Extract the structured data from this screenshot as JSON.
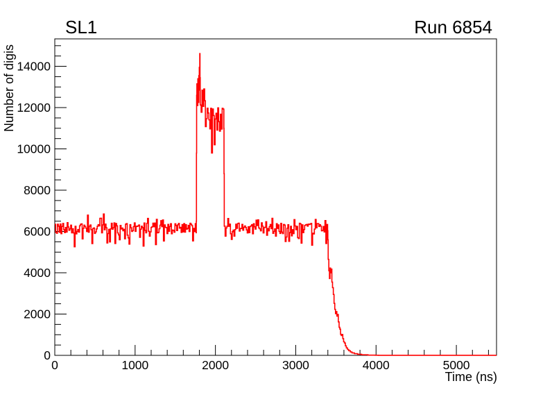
{
  "chart_data": {
    "type": "line",
    "subtype": "histogram-step-line",
    "title": "SL1",
    "right_title": "Run 6854",
    "xlabel": "Time (ns)",
    "ylabel": "Number of digis",
    "xlim": [
      0,
      5500
    ],
    "ylim": [
      0,
      15330
    ],
    "x_major_ticks": [
      0,
      1000,
      2000,
      3000,
      4000,
      5000
    ],
    "x_minor_step": 200,
    "y_major_ticks": [
      0,
      2000,
      4000,
      6000,
      8000,
      10000,
      12000,
      14000
    ],
    "y_minor_step": 500,
    "grid": false,
    "legend": "none",
    "line_color": "#ff0000",
    "axis_color": "#000000",
    "background_color": "#ffffff",
    "peak_value": 14617,
    "peak_time_ns": 1805,
    "baseline_level": 6150,
    "burst_window_ns": [
      1762,
      2110
    ],
    "signal_end_ns": 4000,
    "noise_seed": 6854,
    "series_segments": [
      {
        "kind": "noise",
        "t0": 0,
        "t1": 1762,
        "bin": 11,
        "mean": 6150,
        "amp": 270,
        "dip_p": 0.16,
        "dip_min": 250,
        "dip_max": 750,
        "up_p": 0.12,
        "up_min": 150,
        "up_max": 430
      },
      {
        "kind": "points",
        "points": [
          [
            1762,
            6500
          ],
          [
            1764,
            9800
          ],
          [
            1766,
            12600
          ],
          [
            1769,
            13150
          ],
          [
            1772,
            12300
          ],
          [
            1775,
            12950
          ],
          [
            1778,
            12100
          ],
          [
            1781,
            13400
          ],
          [
            1784,
            12650
          ],
          [
            1787,
            13100
          ],
          [
            1790,
            12250
          ],
          [
            1793,
            13550
          ],
          [
            1796,
            12850
          ],
          [
            1799,
            13950
          ],
          [
            1802,
            13300
          ],
          [
            1805,
            14617
          ],
          [
            1808,
            13450
          ],
          [
            1811,
            12750
          ]
        ]
      },
      {
        "kind": "noise",
        "t0": 1811,
        "t1": 1875,
        "bin": 11,
        "mean": 12300,
        "amp": 550,
        "dip_p": 0.15,
        "dip_min": 300,
        "dip_max": 900,
        "up_p": 0.1,
        "up_min": 100,
        "up_max": 500
      },
      {
        "kind": "noise",
        "t0": 1875,
        "t1": 2105,
        "bin": 11,
        "mean": 11400,
        "amp": 620,
        "dip_p": 0.12,
        "dip_min": 300,
        "dip_max": 1250,
        "up_p": 0.13,
        "up_min": 200,
        "up_max": 900
      },
      {
        "kind": "points",
        "points": [
          [
            2105,
            11000
          ],
          [
            2107,
            8800
          ],
          [
            2110,
            6400
          ]
        ]
      },
      {
        "kind": "noise",
        "t0": 2110,
        "t1": 3400,
        "bin": 11,
        "mean": 6150,
        "amp": 270,
        "dip_p": 0.16,
        "dip_min": 250,
        "dip_max": 750,
        "up_p": 0.12,
        "up_min": 150,
        "up_max": 430
      },
      {
        "kind": "points",
        "points": [
          [
            3400,
            5600
          ],
          [
            3404,
            4650
          ],
          [
            3412,
            4100
          ],
          [
            3420,
            3720
          ],
          [
            3427,
            4230
          ],
          [
            3434,
            4000
          ],
          [
            3443,
            4180
          ],
          [
            3450,
            3550
          ],
          [
            3458,
            3280
          ],
          [
            3468,
            2950
          ],
          [
            3477,
            2520
          ],
          [
            3486,
            2230
          ],
          [
            3495,
            2020
          ],
          [
            3504,
            2120
          ],
          [
            3512,
            1900
          ],
          [
            3520,
            1980
          ],
          [
            3530,
            1620
          ],
          [
            3540,
            1360
          ],
          [
            3549,
            1270
          ],
          [
            3558,
            1020
          ],
          [
            3567,
            960
          ],
          [
            3577,
            1010
          ],
          [
            3586,
            810
          ],
          [
            3596,
            660
          ],
          [
            3606,
            600
          ],
          [
            3618,
            460
          ],
          [
            3630,
            360
          ],
          [
            3645,
            285
          ],
          [
            3660,
            225
          ],
          [
            3680,
            165
          ],
          [
            3700,
            120
          ],
          [
            3730,
            82
          ],
          [
            3770,
            52
          ],
          [
            3820,
            28
          ],
          [
            3900,
            12
          ],
          [
            3990,
            5
          ],
          [
            4030,
            3
          ]
        ]
      }
    ]
  }
}
